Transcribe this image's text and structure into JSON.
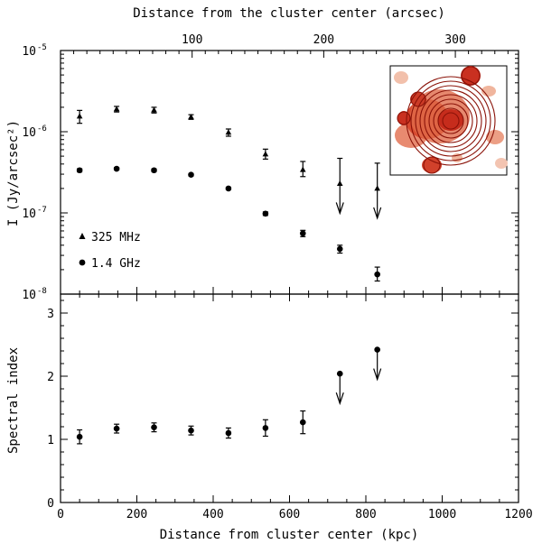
{
  "chart_data": [
    {
      "type": "scatter",
      "title": "",
      "xlabel": "Distance from cluster center (kpc)",
      "top_xlabel": "Distance from the cluster center (arcsec)",
      "ylabel": "I (Jy/arcsec²)",
      "xlim": [
        0,
        1200
      ],
      "top_xlim": [
        0,
        348
      ],
      "ylim": [
        1e-08,
        1e-05
      ],
      "yscale": "log",
      "x_ticks": [
        "0",
        "200",
        "400",
        "600",
        "800",
        "1000",
        "1200"
      ],
      "top_x_ticks": [
        "100",
        "200",
        "300"
      ],
      "y_tick_labels": [
        {
          "base": "10",
          "exp": "-8"
        },
        {
          "base": "10",
          "exp": "-7"
        },
        {
          "base": "10",
          "exp": "-6"
        },
        {
          "base": "10",
          "exp": "-5"
        }
      ],
      "legend": [
        {
          "marker": "triangle",
          "label": "325 MHz"
        },
        {
          "marker": "circle",
          "label": "1.4 GHz"
        }
      ],
      "series": [
        {
          "name": "325 MHz",
          "marker": "triangle",
          "x": [
            50,
            147,
            245,
            342,
            440,
            537,
            635,
            732,
            830
          ],
          "y": [
            1.55e-06,
            1.9e-06,
            1.85e-06,
            1.52e-06,
            9.8e-07,
            5.3e-07,
            3.4e-07,
            2.3e-07,
            2e-07
          ],
          "err_low": [
            1.27e-06,
            1.75e-06,
            1.7e-06,
            1.42e-06,
            8.8e-07,
            4.6e-07,
            2.8e-07,
            null,
            null
          ],
          "err_high": [
            1.83e-06,
            2.05e-06,
            2e-06,
            1.62e-06,
            1.08e-06,
            6.1e-07,
            4.3e-07,
            4.7e-07,
            4.1e-07
          ],
          "upper_limit": [
            false,
            false,
            false,
            false,
            false,
            false,
            false,
            true,
            true
          ]
        },
        {
          "name": "1.4 GHz",
          "marker": "circle",
          "x": [
            50,
            147,
            245,
            342,
            440,
            537,
            635,
            732,
            830
          ],
          "y": [
            3.35e-07,
            3.5e-07,
            3.35e-07,
            2.95e-07,
            2e-07,
            9.8e-08,
            5.6e-08,
            3.6e-08,
            1.75e-08
          ],
          "err_low": [
            3.2e-07,
            3.38e-07,
            3.22e-07,
            2.85e-07,
            1.93e-07,
            9.3e-08,
            5.1e-08,
            3.2e-08,
            1.45e-08
          ],
          "err_high": [
            3.5e-07,
            3.62e-07,
            3.48e-07,
            3.05e-07,
            2.07e-07,
            1.03e-07,
            6.1e-08,
            4e-08,
            2.15e-08
          ],
          "upper_limit": [
            false,
            false,
            false,
            false,
            false,
            false,
            false,
            false,
            false
          ]
        }
      ]
    },
    {
      "type": "scatter",
      "title": "",
      "xlabel": "Distance from cluster center (kpc)",
      "ylabel": "Spectral index",
      "xlim": [
        0,
        1200
      ],
      "ylim": [
        0,
        3.3
      ],
      "x_ticks": [
        "0",
        "200",
        "400",
        "600",
        "800",
        "1000",
        "1200"
      ],
      "y_ticks": [
        "0",
        "1",
        "2",
        "3"
      ],
      "series": [
        {
          "name": "Spectral index",
          "marker": "circle",
          "x": [
            50,
            147,
            245,
            342,
            440,
            537,
            635,
            732,
            830
          ],
          "y": [
            1.04,
            1.17,
            1.19,
            1.14,
            1.1,
            1.18,
            1.27,
            2.04,
            2.42
          ],
          "err_low": [
            0.93,
            1.1,
            1.12,
            1.07,
            1.02,
            1.05,
            1.09,
            null,
            null
          ],
          "err_high": [
            1.15,
            1.24,
            1.26,
            1.21,
            1.18,
            1.31,
            1.45,
            null,
            null
          ],
          "upper_limit": [
            false,
            false,
            false,
            false,
            false,
            false,
            false,
            true,
            true
          ]
        }
      ]
    }
  ]
}
